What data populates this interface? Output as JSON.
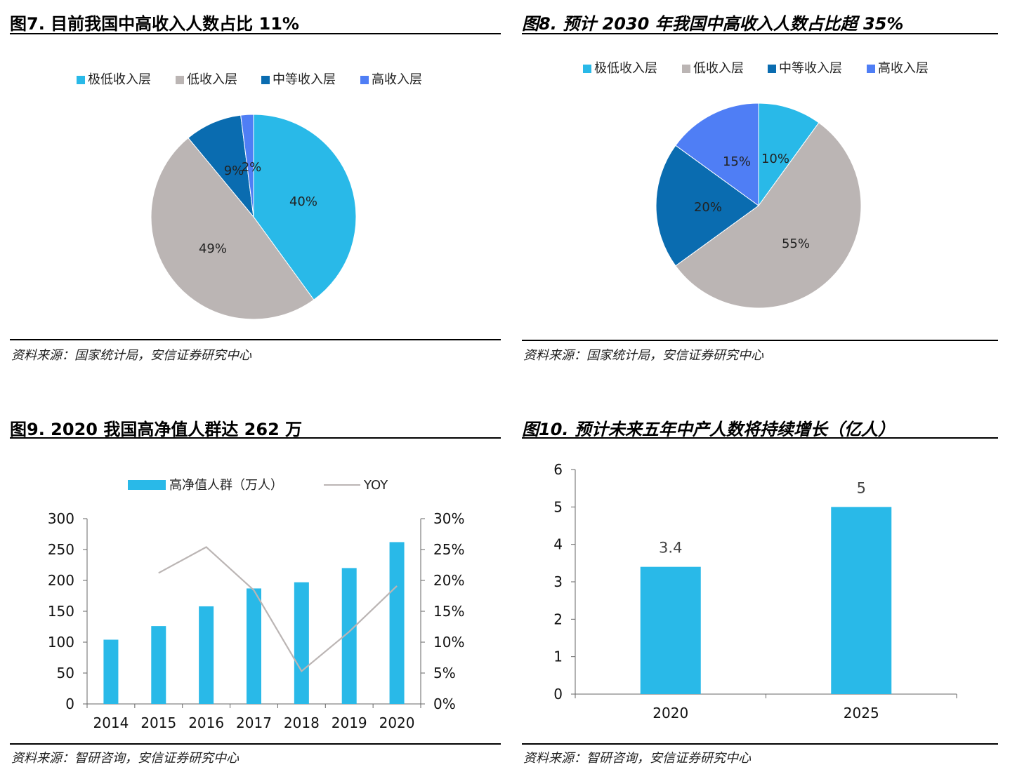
{
  "chart_data": [
    {
      "type": "pie",
      "title": "图7. 目前我国中高收入人数占比 11%",
      "source": "资料来源：国家统计局，安信证券研究中心",
      "categories": [
        "极低收入层",
        "低收入层",
        "中等收入层",
        "高收入层"
      ],
      "values": [
        40,
        49,
        9,
        2
      ],
      "labels": [
        "40%",
        "49%",
        "9%",
        "2%"
      ],
      "colors": [
        "#29b9e8",
        "#bbb5b4",
        "#0a6cb0",
        "#4f7ef5"
      ],
      "legend": "top"
    },
    {
      "type": "pie",
      "title": "图8. 预计 2030 年我国中高收入人数占比超 35%",
      "source": "资料来源：国家统计局，安信证券研究中心",
      "categories": [
        "极低收入层",
        "低收入层",
        "中等收入层",
        "高收入层"
      ],
      "values": [
        10,
        55,
        20,
        15
      ],
      "labels": [
        "10%",
        "55%",
        "20%",
        "15%"
      ],
      "colors": [
        "#29b9e8",
        "#bbb5b4",
        "#0a6cb0",
        "#4f7ef5"
      ],
      "legend": "top"
    },
    {
      "type": "bar",
      "title": "图9. 2020 我国高净值人群达 262 万",
      "source": "资料来源：智研咨询，安信证券研究中心",
      "categories": [
        "2014",
        "2015",
        "2016",
        "2017",
        "2018",
        "2019",
        "2020"
      ],
      "series": [
        {
          "name": "高净值人群（万人）",
          "type": "bar",
          "axis": "left",
          "color": "#29b9e8",
          "values": [
            104,
            126,
            158,
            187,
            197,
            220,
            262
          ]
        },
        {
          "name": "YOY",
          "type": "line",
          "axis": "right",
          "color": "#bbb5b4",
          "values": [
            null,
            21.2,
            25.4,
            18.4,
            5.3,
            11.7,
            19.1
          ]
        }
      ],
      "ylim": [
        0,
        300
      ],
      "yticks": [
        "0",
        "50",
        "100",
        "150",
        "200",
        "250",
        "300"
      ],
      "y2lim": [
        0,
        30
      ],
      "y2ticks": [
        "0%",
        "5%",
        "10%",
        "15%",
        "20%",
        "25%",
        "30%"
      ],
      "legend": "top"
    },
    {
      "type": "bar",
      "title": "图10. 预计未来五年中产人数将持续增长（亿人）",
      "source": "资料来源：智研咨询，安信证券研究中心",
      "categories": [
        "2020",
        "2025"
      ],
      "values": [
        3.4,
        5
      ],
      "labels": [
        "3.4",
        "5"
      ],
      "color": "#29b9e8",
      "ylim": [
        0,
        6
      ],
      "yticks": [
        "0",
        "1",
        "2",
        "3",
        "4",
        "5",
        "6"
      ]
    }
  ]
}
